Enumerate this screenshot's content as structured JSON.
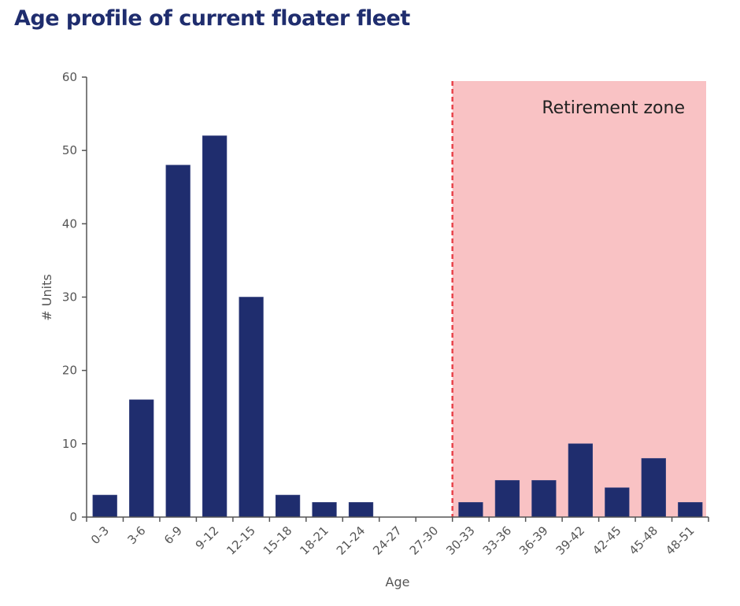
{
  "title": "Age profile of current floater fleet",
  "chart_data": {
    "type": "bar",
    "title": "Age profile of current floater fleet",
    "xlabel": "Age",
    "ylabel": "# Units",
    "ylim": [
      0,
      60
    ],
    "yticks": [
      0,
      10,
      20,
      30,
      40,
      50,
      60
    ],
    "categories": [
      "0-3",
      "3-6",
      "6-9",
      "9-12",
      "12-15",
      "15-18",
      "18-21",
      "21-24",
      "24-27",
      "27-30",
      "30-33",
      "33-36",
      "36-39",
      "39-42",
      "42-45",
      "45-48",
      "48-51"
    ],
    "values": [
      3,
      16,
      48,
      52,
      30,
      3,
      2,
      2,
      0,
      0,
      2,
      5,
      5,
      10,
      4,
      8,
      2
    ],
    "bar_color": "#1f2d6e",
    "annotation": {
      "label": "Retirement zone",
      "start_category": "30-33",
      "end_category": "48-51",
      "fill_color": "#f9c2c4",
      "line_color": "#e8424a"
    }
  }
}
